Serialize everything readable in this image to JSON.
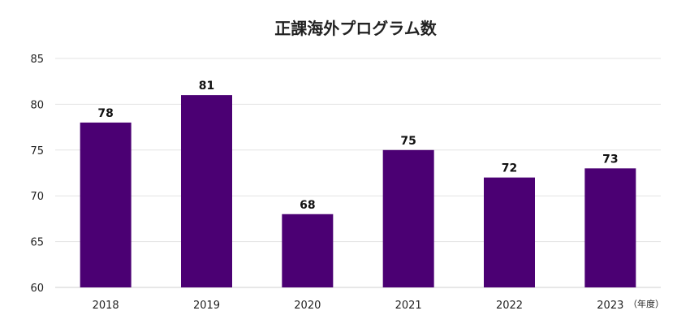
{
  "chart_data": {
    "type": "bar",
    "title": "正課海外プログラム数",
    "categories": [
      "2018",
      "2019",
      "2020",
      "2021",
      "2022",
      "2023"
    ],
    "values": [
      78,
      81,
      68,
      75,
      72,
      73
    ],
    "ylim": [
      60,
      85
    ],
    "yticks": [
      "60",
      "65",
      "70",
      "75",
      "80",
      "85"
    ],
    "unit_label": "（年度）",
    "bar_color": "#4b0073",
    "grid": true,
    "legend": false
  }
}
